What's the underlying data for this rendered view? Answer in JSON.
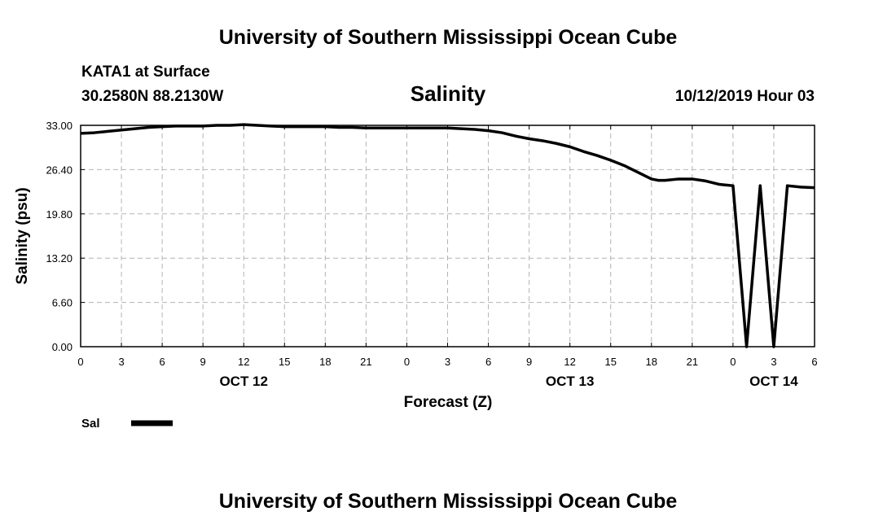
{
  "header": {
    "title": "University of Southern Mississippi Ocean Cube",
    "station": "KATA1 at Surface",
    "coords": "30.2580N 88.2130W",
    "valid_time": "10/12/2019 Hour 03",
    "footer": "University of Southern Mississippi Ocean Cube"
  },
  "chart_data": {
    "type": "line",
    "title": "Salinity",
    "xlabel": "Forecast (Z)",
    "ylabel": "Salinity (psu)",
    "xlim": [
      0,
      54
    ],
    "ylim": [
      0,
      33
    ],
    "grid": true,
    "legend_position": "bottom-left",
    "x_ticks": [
      {
        "x": 0,
        "label": "0"
      },
      {
        "x": 3,
        "label": "3"
      },
      {
        "x": 6,
        "label": "6"
      },
      {
        "x": 9,
        "label": "9"
      },
      {
        "x": 12,
        "label": "12"
      },
      {
        "x": 15,
        "label": "15"
      },
      {
        "x": 18,
        "label": "18"
      },
      {
        "x": 21,
        "label": "21"
      },
      {
        "x": 24,
        "label": "0"
      },
      {
        "x": 27,
        "label": "3"
      },
      {
        "x": 30,
        "label": "6"
      },
      {
        "x": 33,
        "label": "9"
      },
      {
        "x": 36,
        "label": "12"
      },
      {
        "x": 39,
        "label": "15"
      },
      {
        "x": 42,
        "label": "18"
      },
      {
        "x": 45,
        "label": "21"
      },
      {
        "x": 48,
        "label": "0"
      },
      {
        "x": 51,
        "label": "3"
      },
      {
        "x": 54,
        "label": "6"
      }
    ],
    "day_labels": [
      {
        "x": 12,
        "label": "OCT 12"
      },
      {
        "x": 36,
        "label": "OCT 13"
      },
      {
        "x": 51,
        "label": "OCT 14"
      }
    ],
    "y_ticks": [
      {
        "y": 0,
        "label": "0.00"
      },
      {
        "y": 6.6,
        "label": "6.60"
      },
      {
        "y": 13.2,
        "label": "13.20"
      },
      {
        "y": 19.8,
        "label": "19.80"
      },
      {
        "y": 26.4,
        "label": "26.40"
      },
      {
        "y": 33,
        "label": "33.00"
      }
    ],
    "series": [
      {
        "name": "Sal",
        "color": "#000000",
        "x": [
          0,
          1,
          2,
          3,
          4,
          5,
          6,
          7,
          8,
          9,
          10,
          11,
          12,
          13,
          14,
          15,
          16,
          17,
          18,
          19,
          20,
          21,
          22,
          23,
          24,
          25,
          26,
          27,
          28,
          29,
          30,
          31,
          32,
          33,
          34,
          35,
          36,
          37,
          38,
          39,
          40,
          41,
          42,
          42.5,
          43,
          44,
          45,
          46,
          47,
          48,
          49,
          50,
          51,
          52,
          53,
          54
        ],
        "values": [
          31.8,
          31.9,
          32.1,
          32.3,
          32.5,
          32.7,
          32.8,
          32.9,
          32.9,
          32.9,
          33.0,
          33.0,
          33.1,
          33.0,
          32.9,
          32.8,
          32.8,
          32.8,
          32.8,
          32.7,
          32.7,
          32.6,
          32.6,
          32.6,
          32.6,
          32.6,
          32.6,
          32.6,
          32.5,
          32.4,
          32.2,
          31.9,
          31.4,
          31.0,
          30.7,
          30.3,
          29.8,
          29.1,
          28.5,
          27.8,
          27.0,
          26.0,
          25.0,
          24.8,
          24.8,
          25.0,
          25.0,
          24.7,
          24.2,
          24.0,
          0.0,
          24.0,
          0.0,
          24.0,
          23.8,
          23.7
        ]
      }
    ]
  }
}
